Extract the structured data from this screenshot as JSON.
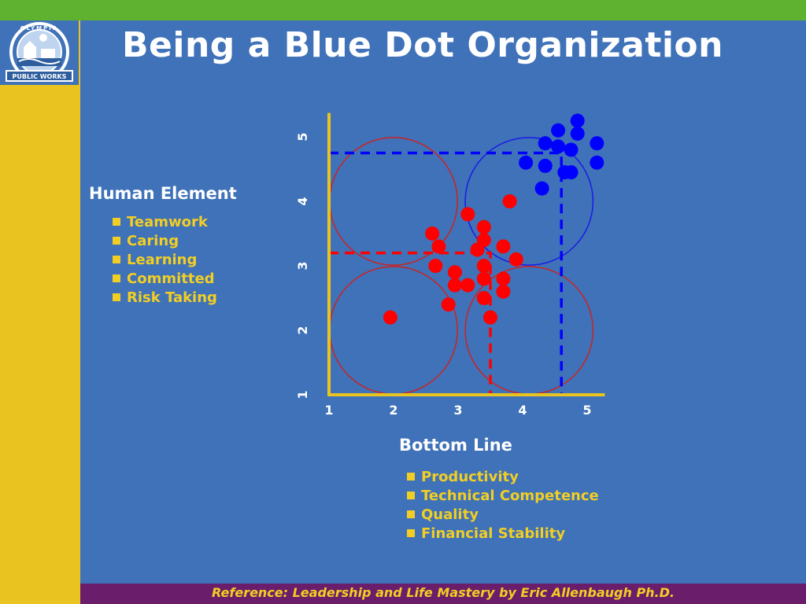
{
  "title": "Being a Blue Dot Organization",
  "logo": {
    "text_top": "OLYMPIA",
    "text_bottom": "PUBLIC WORKS"
  },
  "human_element": {
    "heading": "Human Element",
    "items": [
      "Teamwork",
      "Caring",
      "Learning",
      "Committed",
      "Risk Taking"
    ]
  },
  "bottom_line": {
    "heading": "Bottom Line",
    "items": [
      "Productivity",
      "Technical Competence",
      "Quality",
      "Financial Stability"
    ]
  },
  "footer": "Reference:  Leadership and Life Mastery by Eric Allenbaugh Ph.D.",
  "colors": {
    "background": "#3F72B8",
    "top_bar": "#5FB230",
    "side_bar": "#E9C31F",
    "footer_bar": "#6A1D6B",
    "accent_text": "#F2CE24",
    "red_dots": "#FF0000",
    "blue_dots": "#0000FF",
    "axis": "#E9C31F"
  },
  "chart_data": {
    "type": "scatter",
    "xlim": [
      1,
      5.2
    ],
    "ylim": [
      1,
      5.2
    ],
    "x_ticks": [
      "1",
      "2",
      "3",
      "4",
      "5"
    ],
    "y_ticks": [
      "1",
      "2",
      "3",
      "4",
      "5"
    ],
    "series": [
      {
        "color": "#FF0000",
        "points": [
          [
            1.95,
            2.2
          ],
          [
            2.6,
            3.5
          ],
          [
            2.7,
            3.3
          ],
          [
            2.65,
            3.0
          ],
          [
            2.85,
            2.4
          ],
          [
            2.95,
            2.9
          ],
          [
            2.95,
            2.7
          ],
          [
            3.15,
            3.8
          ],
          [
            3.15,
            2.7
          ],
          [
            3.3,
            3.25
          ],
          [
            3.4,
            3.6
          ],
          [
            3.4,
            3.4
          ],
          [
            3.4,
            3.0
          ],
          [
            3.4,
            2.8
          ],
          [
            3.4,
            2.5
          ],
          [
            3.5,
            2.2
          ],
          [
            3.7,
            2.8
          ],
          [
            3.7,
            2.6
          ],
          [
            3.7,
            3.3
          ],
          [
            3.8,
            4.0
          ],
          [
            3.9,
            3.1
          ]
        ]
      },
      {
        "color": "#0000FF",
        "points": [
          [
            4.05,
            4.6
          ],
          [
            4.3,
            4.2
          ],
          [
            4.35,
            4.9
          ],
          [
            4.35,
            4.55
          ],
          [
            4.55,
            5.1
          ],
          [
            4.55,
            4.85
          ],
          [
            4.65,
            4.45
          ],
          [
            4.75,
            4.8
          ],
          [
            4.75,
            4.45
          ],
          [
            4.85,
            5.25
          ],
          [
            4.85,
            5.05
          ],
          [
            5.15,
            4.9
          ],
          [
            5.15,
            4.6
          ]
        ]
      }
    ],
    "circles": [
      {
        "center": [
          2,
          4
        ],
        "radius": 1,
        "color": "#CC2222"
      },
      {
        "center": [
          4.1,
          4
        ],
        "radius": 1,
        "color": "#1A1AE6"
      },
      {
        "center": [
          2,
          2
        ],
        "radius": 1,
        "color": "#CC2222"
      },
      {
        "center": [
          4.1,
          2
        ],
        "radius": 1,
        "color": "#CC2222"
      }
    ],
    "reference_lines": [
      {
        "color": "#0000FF",
        "x": 4.6,
        "y": 4.75
      },
      {
        "color": "#FF0000",
        "x": 3.5,
        "y": 3.2
      }
    ]
  }
}
